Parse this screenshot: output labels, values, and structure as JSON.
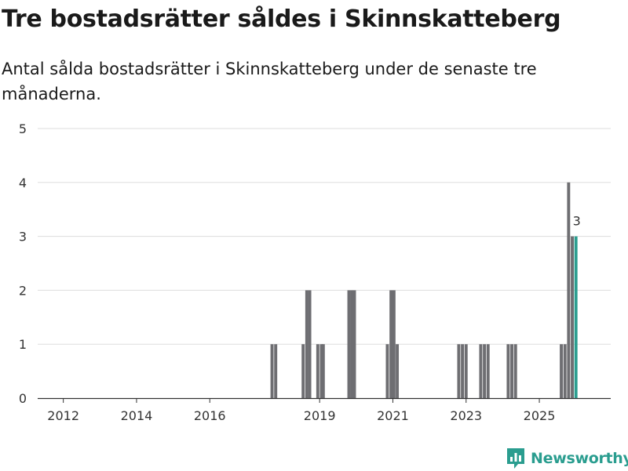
{
  "header": {
    "title": "Tre bostadsrätter såldes i Skinnskatteberg",
    "subtitle": "Antal sålda bostadsrätter i Skinnskatteberg under de senaste tre månaderna."
  },
  "brand": {
    "name": "Newsworthy",
    "color": "#2a9d8f",
    "icon": "bar-chart-logo-icon"
  },
  "colors": {
    "bar": "#6e6e72",
    "highlight": "#2a9d8f",
    "grid": "#dddddd",
    "axis": "#333333"
  },
  "chart_data": {
    "type": "bar",
    "title": "Tre bostadsrätter såldes i Skinnskatteberg",
    "xlabel": "",
    "ylabel": "",
    "ylim": [
      0,
      5
    ],
    "yticks": [
      0,
      1,
      2,
      3,
      4,
      5
    ],
    "xticks": [
      {
        "label": "2012",
        "x": 2011.5
      },
      {
        "label": "2014",
        "x": 2013.5
      },
      {
        "label": "2016",
        "x": 2015.5
      },
      {
        "label": "2019",
        "x": 2018.5
      },
      {
        "label": "2021",
        "x": 2020.5
      },
      {
        "label": "2023",
        "x": 2022.5
      },
      {
        "label": "2025",
        "x": 2024.5
      }
    ],
    "xlim": [
      2010.8,
      2026.45
    ],
    "bar_width": 0.084,
    "grid": true,
    "series": [
      {
        "name": "Antal sålda bostadsrätter",
        "points": [
          {
            "x": 2017.2,
            "value": 1
          },
          {
            "x": 2017.3,
            "value": 1
          },
          {
            "x": 2018.05,
            "value": 1
          },
          {
            "x": 2018.15,
            "value": 2
          },
          {
            "x": 2018.23,
            "value": 2
          },
          {
            "x": 2018.45,
            "value": 1
          },
          {
            "x": 2018.55,
            "value": 1
          },
          {
            "x": 2018.6,
            "value": 1
          },
          {
            "x": 2019.3,
            "value": 2
          },
          {
            "x": 2019.38,
            "value": 2
          },
          {
            "x": 2019.45,
            "value": 2
          },
          {
            "x": 2020.35,
            "value": 1
          },
          {
            "x": 2020.45,
            "value": 2
          },
          {
            "x": 2020.53,
            "value": 2
          },
          {
            "x": 2020.62,
            "value": 1
          },
          {
            "x": 2022.3,
            "value": 1
          },
          {
            "x": 2022.4,
            "value": 1
          },
          {
            "x": 2022.5,
            "value": 1
          },
          {
            "x": 2022.9,
            "value": 1
          },
          {
            "x": 2023.0,
            "value": 1
          },
          {
            "x": 2023.1,
            "value": 1
          },
          {
            "x": 2023.65,
            "value": 1
          },
          {
            "x": 2023.75,
            "value": 1
          },
          {
            "x": 2023.85,
            "value": 1
          },
          {
            "x": 2025.1,
            "value": 1
          },
          {
            "x": 2025.2,
            "value": 1
          },
          {
            "x": 2025.3,
            "value": 4
          },
          {
            "x": 2025.4,
            "value": 3
          },
          {
            "x": 2025.5,
            "value": 3,
            "highlight": true,
            "label": "3"
          }
        ]
      }
    ]
  }
}
